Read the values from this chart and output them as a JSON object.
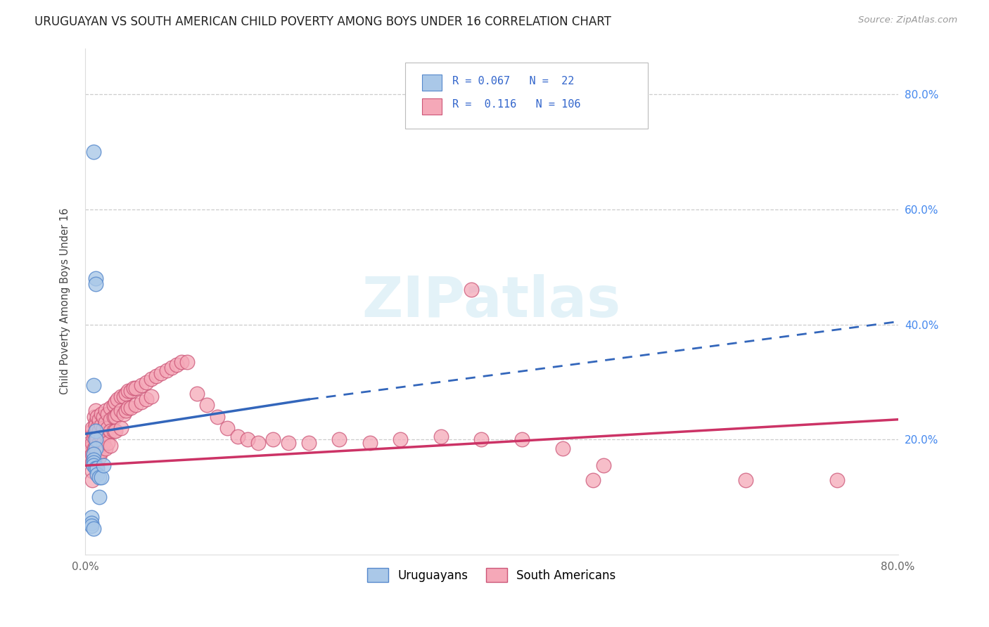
{
  "title": "URUGUAYAN VS SOUTH AMERICAN CHILD POVERTY AMONG BOYS UNDER 16 CORRELATION CHART",
  "source": "Source: ZipAtlas.com",
  "ylabel": "Child Poverty Among Boys Under 16",
  "xlim": [
    0,
    0.8
  ],
  "ylim": [
    0,
    0.88
  ],
  "uruguayan_color": "#aac8e8",
  "uruguayan_edge_color": "#5588cc",
  "uruguayan_line_color": "#3366bb",
  "sa_color": "#f5a8b8",
  "sa_edge_color": "#cc5577",
  "sa_line_color": "#cc3366",
  "legend_r_uru": "0.067",
  "legend_n_uru": "22",
  "legend_r_sa": "0.116",
  "legend_n_sa": "106",
  "right_axis_color": "#4488ee",
  "uru_x": [
    0.01,
    0.01,
    0.01,
    0.008,
    0.008,
    0.008,
    0.008,
    0.01,
    0.012,
    0.012,
    0.014,
    0.016,
    0.018,
    0.014,
    0.006,
    0.006,
    0.006,
    0.008,
    0.008,
    0.01,
    0.01,
    0.008
  ],
  "uru_y": [
    0.215,
    0.2,
    0.185,
    0.175,
    0.165,
    0.16,
    0.155,
    0.15,
    0.15,
    0.14,
    0.135,
    0.135,
    0.155,
    0.1,
    0.065,
    0.055,
    0.05,
    0.045,
    0.7,
    0.48,
    0.47,
    0.295
  ],
  "sa_x": [
    0.005,
    0.005,
    0.005,
    0.007,
    0.007,
    0.007,
    0.007,
    0.007,
    0.007,
    0.007,
    0.008,
    0.008,
    0.009,
    0.009,
    0.009,
    0.009,
    0.01,
    0.01,
    0.01,
    0.01,
    0.01,
    0.01,
    0.01,
    0.012,
    0.012,
    0.012,
    0.012,
    0.014,
    0.014,
    0.014,
    0.014,
    0.016,
    0.016,
    0.016,
    0.016,
    0.018,
    0.018,
    0.018,
    0.02,
    0.02,
    0.02,
    0.02,
    0.022,
    0.022,
    0.022,
    0.025,
    0.025,
    0.025,
    0.025,
    0.028,
    0.028,
    0.028,
    0.03,
    0.03,
    0.03,
    0.032,
    0.032,
    0.035,
    0.035,
    0.035,
    0.038,
    0.038,
    0.04,
    0.04,
    0.042,
    0.042,
    0.045,
    0.045,
    0.048,
    0.05,
    0.05,
    0.055,
    0.055,
    0.06,
    0.06,
    0.065,
    0.065,
    0.07,
    0.075,
    0.08,
    0.085,
    0.09,
    0.095,
    0.1,
    0.11,
    0.12,
    0.13,
    0.14,
    0.15,
    0.16,
    0.17,
    0.185,
    0.2,
    0.22,
    0.25,
    0.28,
    0.31,
    0.35,
    0.39,
    0.43,
    0.47,
    0.51,
    0.38,
    0.65,
    0.74,
    0.5
  ],
  "sa_y": [
    0.195,
    0.185,
    0.17,
    0.215,
    0.195,
    0.175,
    0.16,
    0.145,
    0.13,
    0.22,
    0.205,
    0.175,
    0.24,
    0.21,
    0.185,
    0.16,
    0.25,
    0.23,
    0.21,
    0.19,
    0.17,
    0.155,
    0.225,
    0.24,
    0.22,
    0.2,
    0.175,
    0.235,
    0.215,
    0.195,
    0.17,
    0.245,
    0.225,
    0.205,
    0.18,
    0.24,
    0.22,
    0.195,
    0.25,
    0.23,
    0.21,
    0.185,
    0.245,
    0.22,
    0.195,
    0.255,
    0.235,
    0.215,
    0.19,
    0.26,
    0.24,
    0.215,
    0.265,
    0.24,
    0.215,
    0.27,
    0.245,
    0.275,
    0.25,
    0.22,
    0.275,
    0.245,
    0.28,
    0.25,
    0.285,
    0.255,
    0.285,
    0.255,
    0.29,
    0.29,
    0.26,
    0.295,
    0.265,
    0.3,
    0.27,
    0.305,
    0.275,
    0.31,
    0.315,
    0.32,
    0.325,
    0.33,
    0.335,
    0.335,
    0.28,
    0.26,
    0.24,
    0.22,
    0.205,
    0.2,
    0.195,
    0.2,
    0.195,
    0.195,
    0.2,
    0.195,
    0.2,
    0.205,
    0.2,
    0.2,
    0.185,
    0.155,
    0.46,
    0.13,
    0.13,
    0.13
  ]
}
